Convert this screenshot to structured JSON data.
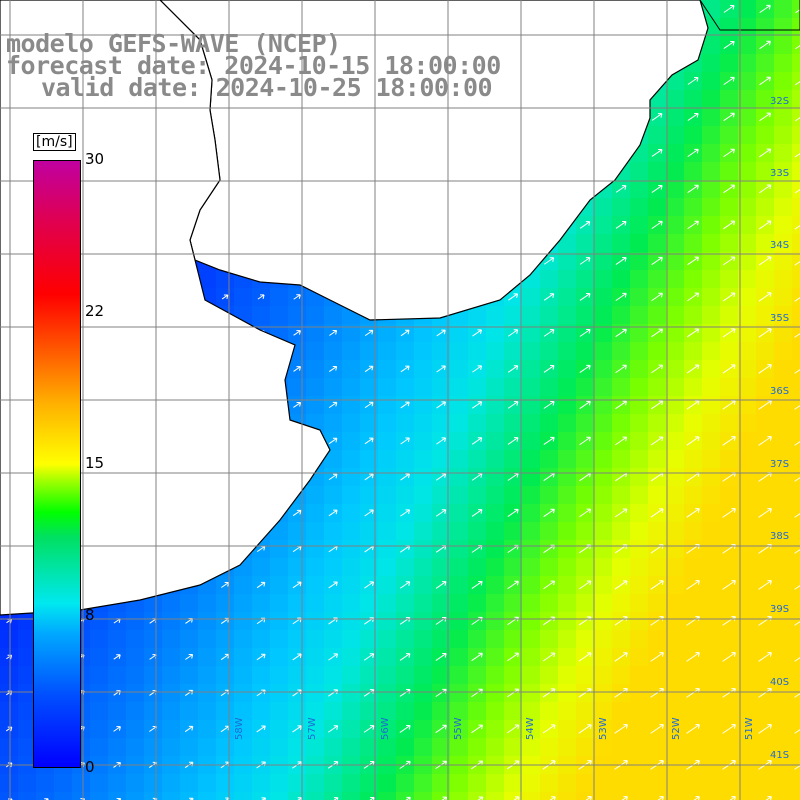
{
  "title": {
    "line1": "modelo GEFS-WAVE (NCEP)",
    "line2": "forecast date: 2024-10-15 18:00:00",
    "line3": "valid date: 2024-10-25 18:00:00"
  },
  "colorbar": {
    "units": "[m/s]",
    "ticks": [
      "30",
      "22",
      "15",
      "8",
      "0"
    ],
    "colors": [
      "#0000ff",
      "#00a8ff",
      "#00e8f0",
      "#00ff00",
      "#ffff00",
      "#ff0000",
      "#c000a0"
    ]
  },
  "lat_labels": [
    "32S",
    "33S",
    "34S",
    "35S",
    "36S",
    "37S",
    "38S",
    "39S",
    "40S",
    "41S"
  ],
  "lon_labels": [
    "58W",
    "57W",
    "56W",
    "55W",
    "54W",
    "53W",
    "52W",
    "51W"
  ],
  "field": "wind speed",
  "land_color": "#ffffff",
  "grid_color": "#808080"
}
